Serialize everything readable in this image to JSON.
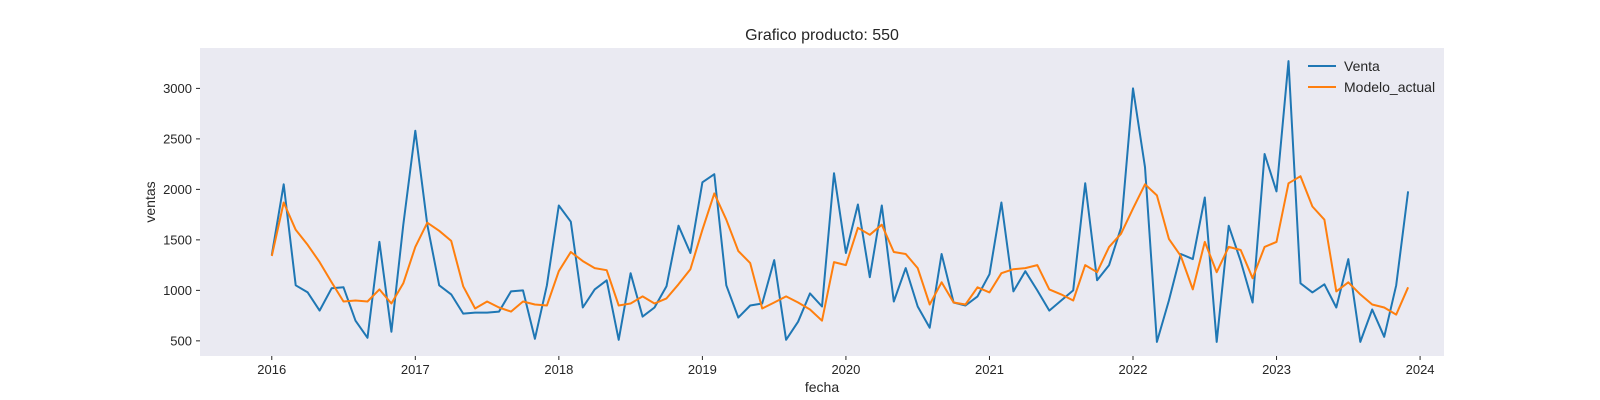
{
  "chart_data": {
    "type": "line",
    "title": "Grafico producto: 550",
    "xlabel": "fecha",
    "ylabel": "ventas",
    "x_start": "2016-01",
    "x_frequency": "monthly",
    "xlim": [
      "2015-07",
      "2024-03"
    ],
    "ylim": [
      350,
      3400
    ],
    "xticks": [
      "2016",
      "2017",
      "2018",
      "2019",
      "2020",
      "2021",
      "2022",
      "2023",
      "2024"
    ],
    "yticks": [
      500,
      1000,
      1500,
      2000,
      2500,
      3000
    ],
    "grid": false,
    "background": "#eaeaf2",
    "legend_position": "top-right",
    "series": [
      {
        "name": "Venta",
        "color": "#1f77b4",
        "values": [
          1350,
          2050,
          1050,
          980,
          800,
          1020,
          1030,
          700,
          530,
          1480,
          590,
          1650,
          2580,
          1650,
          1050,
          960,
          770,
          780,
          780,
          790,
          990,
          1000,
          520,
          1050,
          1840,
          1680,
          830,
          1010,
          1100,
          510,
          1170,
          740,
          830,
          1040,
          1640,
          1370,
          2070,
          2150,
          1050,
          730,
          850,
          870,
          1300,
          510,
          690,
          970,
          840,
          2160,
          1370,
          1850,
          1130,
          1840,
          890,
          1220,
          840,
          630,
          1360,
          880,
          850,
          940,
          1160,
          1870,
          990,
          1190,
          1000,
          800,
          900,
          1000,
          2060,
          1100,
          1250,
          1620,
          3000,
          2220,
          490,
          900,
          1360,
          1310,
          1920,
          490,
          1640,
          1290,
          880,
          2350,
          1980,
          3270,
          1070,
          980,
          1060,
          830,
          1310,
          490,
          810,
          540,
          1050,
          1980
        ]
      },
      {
        "name": "Modelo_actual",
        "color": "#ff7f0e",
        "values": [
          1340,
          1870,
          1600,
          1450,
          1280,
          1080,
          890,
          900,
          890,
          1010,
          870,
          1070,
          1430,
          1670,
          1590,
          1490,
          1040,
          820,
          890,
          830,
          790,
          890,
          860,
          850,
          1190,
          1380,
          1290,
          1220,
          1200,
          850,
          870,
          940,
          870,
          920,
          1060,
          1210,
          1600,
          1960,
          1700,
          1390,
          1270,
          820,
          880,
          940,
          880,
          810,
          700,
          1280,
          1250,
          1620,
          1550,
          1650,
          1380,
          1360,
          1220,
          860,
          1080,
          880,
          860,
          1030,
          980,
          1170,
          1210,
          1220,
          1250,
          1010,
          960,
          900,
          1250,
          1180,
          1430,
          1560,
          1810,
          2050,
          1940,
          1510,
          1340,
          1010,
          1480,
          1180,
          1430,
          1400,
          1120,
          1430,
          1480,
          2060,
          2130,
          1830,
          1700,
          990,
          1080,
          960,
          860,
          830,
          760,
          1030
        ]
      }
    ]
  }
}
